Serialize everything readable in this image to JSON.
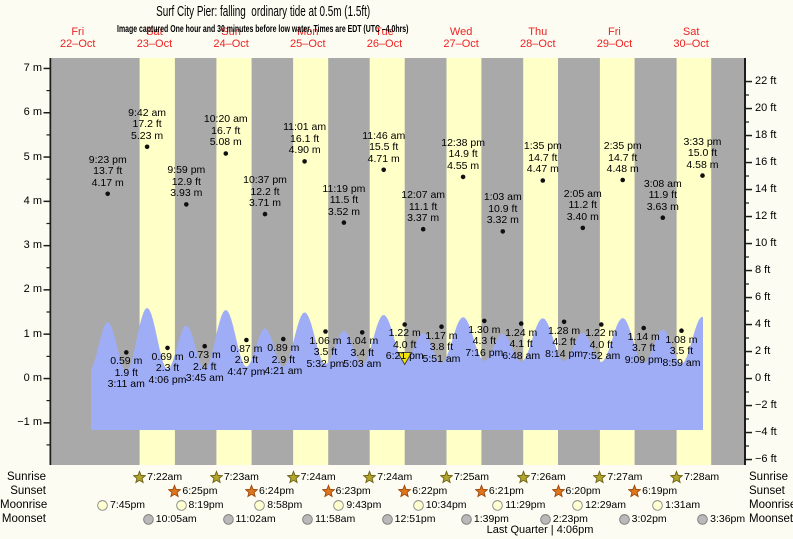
{
  "header": {
    "title": "Surf City Pier: falling  ordinary tide at 0.5m (1.5ft)",
    "subtitle": "Image captured One hour and 30 minutes before low water. Times are EDT (UTC –4.0hrs)"
  },
  "palette": {
    "plot_bg": "#a9a9a9",
    "daylight_band": "#ffffc8",
    "tide_fill": "#9fadf6",
    "axis_line": "#1c1c1c",
    "day_label_red": "#ee2222",
    "marker_yellow": "#f2e205"
  },
  "chart_data": {
    "type": "area",
    "title": "Surf City Pier: falling ordinary tide at 0.5m (1.5ft)",
    "subtitle": "Image captured One hour and 30 minutes before low water. Times are EDT (UTC –4.0hrs)",
    "days": [
      {
        "dow": "Fri",
        "date": "22–Oct"
      },
      {
        "dow": "Sat",
        "date": "23–Oct"
      },
      {
        "dow": "Sun",
        "date": "24–Oct"
      },
      {
        "dow": "Mon",
        "date": "25–Oct"
      },
      {
        "dow": "Tue",
        "date": "26–Oct"
      },
      {
        "dow": "Wed",
        "date": "27–Oct"
      },
      {
        "dow": "Thu",
        "date": "28–Oct"
      },
      {
        "dow": "Fri",
        "date": "29–Oct"
      },
      {
        "dow": "Sat",
        "date": "30–Oct"
      }
    ],
    "y_axis_left": {
      "unit": "m",
      "ticks": [
        7,
        6,
        5,
        4,
        3,
        2,
        1,
        0,
        -1
      ]
    },
    "y_axis_right": {
      "unit": "ft",
      "ticks": [
        22,
        20,
        18,
        16,
        14,
        12,
        10,
        8,
        6,
        4,
        2,
        0,
        -2,
        -4,
        -6
      ]
    },
    "high_tides": [
      {
        "day": 0,
        "time": "9:23 pm",
        "ft": "13.7 ft",
        "m": "4.17 m"
      },
      {
        "day": 1,
        "time": "9:42 am",
        "ft": "17.2 ft",
        "m": "5.23 m"
      },
      {
        "day": 1,
        "time": "9:59 pm",
        "ft": "12.9 ft",
        "m": "3.93 m"
      },
      {
        "day": 2,
        "time": "10:20 am",
        "ft": "16.7 ft",
        "m": "5.08 m"
      },
      {
        "day": 2,
        "time": "10:37 pm",
        "ft": "12.2 ft",
        "m": "3.71 m"
      },
      {
        "day": 3,
        "time": "11:01 am",
        "ft": "16.1 ft",
        "m": "4.90 m"
      },
      {
        "day": 3,
        "time": "11:19 pm",
        "ft": "11.5 ft",
        "m": "3.52 m"
      },
      {
        "day": 4,
        "time": "11:46 am",
        "ft": "15.5 ft",
        "m": "4.71 m"
      },
      {
        "day": 5,
        "time": "12:07 am",
        "ft": "11.1 ft",
        "m": "3.37 m"
      },
      {
        "day": 5,
        "time": "12:38 pm",
        "ft": "14.9 ft",
        "m": "4.55 m"
      },
      {
        "day": 6,
        "time": "1:03 am",
        "ft": "10.9 ft",
        "m": "3.32 m"
      },
      {
        "day": 6,
        "time": "1:35 pm",
        "ft": "14.7 ft",
        "m": "4.47 m"
      },
      {
        "day": 7,
        "time": "2:05 am",
        "ft": "11.2 ft",
        "m": "3.40 m"
      },
      {
        "day": 7,
        "time": "2:35 pm",
        "ft": "14.7 ft",
        "m": "4.48 m"
      },
      {
        "day": 8,
        "time": "3:08 am",
        "ft": "11.9 ft",
        "m": "3.63 m"
      },
      {
        "day": 8,
        "time": "3:33 pm",
        "ft": "15.0 ft",
        "m": "4.58 m"
      }
    ],
    "low_tides": [
      {
        "day": 1,
        "time": "3:11 am",
        "m": "0.59 m",
        "ft": "1.9 ft"
      },
      {
        "day": 1,
        "time": "4:06 pm",
        "m": "0.69 m",
        "ft": "2.3 ft"
      },
      {
        "day": 2,
        "time": "3:45 am",
        "m": "0.73 m",
        "ft": "2.4 ft"
      },
      {
        "day": 2,
        "time": "4:47 pm",
        "m": "0.87 m",
        "ft": "2.9 ft"
      },
      {
        "day": 3,
        "time": "4:21 am",
        "m": "0.89 m",
        "ft": "2.9 ft"
      },
      {
        "day": 3,
        "time": "5:32 pm",
        "m": "1.06 m",
        "ft": "3.5 ft"
      },
      {
        "day": 4,
        "time": "5:03 am",
        "m": "1.04 m",
        "ft": "3.4 ft"
      },
      {
        "day": 4,
        "time": "6:21 pm",
        "m": "1.22 m",
        "ft": "4.0 ft",
        "marker": true
      },
      {
        "day": 5,
        "time": "5:51 am",
        "m": "1.17 m",
        "ft": "3.8 ft"
      },
      {
        "day": 5,
        "time": "7:16 pm",
        "m": "1.30 m",
        "ft": "4.3 ft"
      },
      {
        "day": 6,
        "time": "6:48 am",
        "m": "1.24 m",
        "ft": "4.1 ft"
      },
      {
        "day": 6,
        "time": "8:14 pm",
        "m": "1.28 m",
        "ft": "4.2 ft"
      },
      {
        "day": 7,
        "time": "7:52 am",
        "m": "1.22 m",
        "ft": "4.0 ft"
      },
      {
        "day": 7,
        "time": "9:09 pm",
        "m": "1.14 m",
        "ft": "3.7 ft"
      },
      {
        "day": 8,
        "time": "8:59 am",
        "m": "1.08 m",
        "ft": "3.5 ft"
      }
    ],
    "astro_rows": [
      {
        "name": "Sunrise",
        "icon": "sunrise-star",
        "icon_shape": "star",
        "icon_fill": "#b3a42c",
        "icon_stroke": "#6d6418",
        "events": [
          {
            "day": 1,
            "time": "7:22am"
          },
          {
            "day": 2,
            "time": "7:23am"
          },
          {
            "day": 3,
            "time": "7:24am"
          },
          {
            "day": 4,
            "time": "7:24am"
          },
          {
            "day": 5,
            "time": "7:25am"
          },
          {
            "day": 6,
            "time": "7:26am"
          },
          {
            "day": 7,
            "time": "7:27am"
          },
          {
            "day": 8,
            "time": "7:28am"
          }
        ]
      },
      {
        "name": "Sunset",
        "icon": "sunset-star",
        "icon_shape": "star",
        "icon_fill": "#e0761c",
        "icon_stroke": "#9c4a10",
        "events": [
          {
            "day": 1,
            "time": "6:25pm"
          },
          {
            "day": 2,
            "time": "6:24pm"
          },
          {
            "day": 3,
            "time": "6:23pm"
          },
          {
            "day": 4,
            "time": "6:22pm"
          },
          {
            "day": 5,
            "time": "6:21pm"
          },
          {
            "day": 6,
            "time": "6:20pm"
          },
          {
            "day": 7,
            "time": "6:19pm"
          }
        ]
      },
      {
        "name": "Moonrise",
        "icon": "moonrise-circle",
        "icon_shape": "circle",
        "icon_fill": "#ffffd0",
        "icon_stroke": "#8a8a8a",
        "events": [
          {
            "day": 0,
            "time": "7:45pm"
          },
          {
            "day": 1,
            "time": "8:19pm"
          },
          {
            "day": 2,
            "time": "8:58pm"
          },
          {
            "day": 3,
            "time": "9:43pm"
          },
          {
            "day": 4,
            "time": "10:34pm"
          },
          {
            "day": 5,
            "time": "11:29pm"
          },
          {
            "day": 7,
            "time": "12:29am"
          },
          {
            "day": 8,
            "time": "1:31am"
          }
        ]
      },
      {
        "name": "Moonset",
        "icon": "moonset-circle",
        "icon_shape": "circle",
        "icon_fill": "#b9b9b9",
        "icon_stroke": "#7d7d7d",
        "events": [
          {
            "day": 1,
            "time": "10:05am"
          },
          {
            "day": 2,
            "time": "11:02am"
          },
          {
            "day": 3,
            "time": "11:58am"
          },
          {
            "day": 4,
            "time": "12:51pm"
          },
          {
            "day": 5,
            "time": "1:39pm"
          },
          {
            "day": 6,
            "time": "2:23pm"
          },
          {
            "day": 7,
            "time": "3:02pm"
          },
          {
            "day": 8,
            "time": "3:36pm"
          }
        ]
      }
    ],
    "footer": "Last Quarter | 4:06pm"
  }
}
